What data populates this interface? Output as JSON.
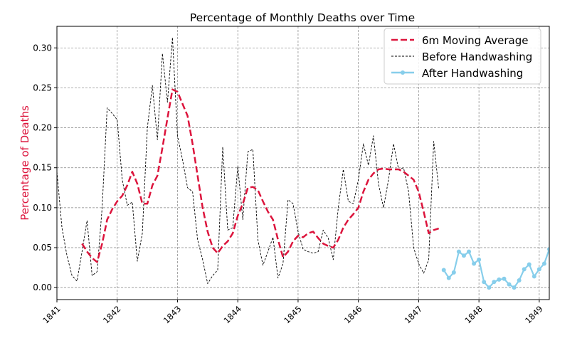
{
  "chart_data": {
    "type": "line",
    "title": "Percentage of Monthly Deaths over Time",
    "xlabel": "",
    "ylabel": "Percentage of Deaths",
    "ylabel_color": "#dc143c",
    "xlim": [
      "1841-01-01",
      "1849-03-01"
    ],
    "ylim": [
      -0.015,
      0.327
    ],
    "x_ticks": [
      {
        "date": "1841-01-01",
        "label": "1841"
      },
      {
        "date": "1842-01-01",
        "label": "1842"
      },
      {
        "date": "1843-01-01",
        "label": "1843"
      },
      {
        "date": "1844-01-01",
        "label": "1844"
      },
      {
        "date": "1845-01-01",
        "label": "1845"
      },
      {
        "date": "1846-01-01",
        "label": "1846"
      },
      {
        "date": "1847-01-01",
        "label": "1847"
      },
      {
        "date": "1848-01-01",
        "label": "1848"
      },
      {
        "date": "1849-01-01",
        "label": "1849"
      }
    ],
    "y_ticks": [
      "0.00",
      "0.05",
      "0.10",
      "0.15",
      "0.20",
      "0.25",
      "0.30"
    ],
    "grid": true,
    "legend_position": "top-right",
    "series": [
      {
        "name": "6m Moving Average",
        "color": "#dc143c",
        "style": "dashed",
        "x": [
          "1841-06-01",
          "1841-07-01",
          "1841-08-01",
          "1841-09-01",
          "1841-10-01",
          "1841-11-01",
          "1841-12-01",
          "1842-01-01",
          "1842-02-01",
          "1842-03-01",
          "1842-04-01",
          "1842-05-01",
          "1842-06-01",
          "1842-07-01",
          "1842-08-01",
          "1842-09-01",
          "1842-10-01",
          "1842-11-01",
          "1842-12-01",
          "1843-01-01",
          "1843-02-01",
          "1843-03-01",
          "1843-04-01",
          "1843-05-01",
          "1843-06-01",
          "1843-07-01",
          "1843-08-01",
          "1843-09-01",
          "1843-10-01",
          "1843-11-01",
          "1843-12-01",
          "1844-01-01",
          "1844-02-01",
          "1844-03-01",
          "1844-04-01",
          "1844-05-01",
          "1844-06-01",
          "1844-07-01",
          "1844-08-01",
          "1844-09-01",
          "1844-10-01",
          "1844-11-01",
          "1844-12-01",
          "1845-01-01",
          "1845-02-01",
          "1845-03-01",
          "1845-04-01",
          "1845-05-01",
          "1845-06-01",
          "1845-07-01",
          "1845-08-01",
          "1845-09-01",
          "1845-10-01",
          "1845-11-01",
          "1845-12-01",
          "1846-01-01",
          "1846-02-01",
          "1846-03-01",
          "1846-04-01",
          "1846-05-01",
          "1846-06-01",
          "1846-07-01",
          "1846-08-01",
          "1846-09-01",
          "1846-10-01",
          "1846-11-01",
          "1846-12-01",
          "1847-01-01",
          "1847-02-01",
          "1847-03-01",
          "1847-04-01",
          "1847-05-01"
        ],
        "values": [
          0.055,
          0.045,
          0.037,
          0.032,
          0.055,
          0.085,
          0.098,
          0.108,
          0.115,
          0.128,
          0.145,
          0.13,
          0.105,
          0.105,
          0.128,
          0.14,
          0.175,
          0.212,
          0.248,
          0.245,
          0.23,
          0.215,
          0.18,
          0.14,
          0.1,
          0.07,
          0.05,
          0.043,
          0.052,
          0.058,
          0.068,
          0.09,
          0.105,
          0.125,
          0.126,
          0.122,
          0.108,
          0.095,
          0.085,
          0.06,
          0.038,
          0.045,
          0.058,
          0.065,
          0.063,
          0.068,
          0.07,
          0.062,
          0.055,
          0.052,
          0.05,
          0.06,
          0.075,
          0.085,
          0.092,
          0.1,
          0.12,
          0.135,
          0.143,
          0.148,
          0.149,
          0.148,
          0.148,
          0.148,
          0.145,
          0.14,
          0.135,
          0.12,
          0.095,
          0.068,
          0.072,
          0.074
        ]
      },
      {
        "name": "Before Handwashing",
        "color": "#000000",
        "style": "dashed-thin",
        "x": [
          "1841-01-01",
          "1841-02-01",
          "1841-03-01",
          "1841-04-01",
          "1841-05-01",
          "1841-06-01",
          "1841-07-01",
          "1841-08-01",
          "1841-09-01",
          "1841-10-01",
          "1841-11-01",
          "1841-12-01",
          "1842-01-01",
          "1842-02-01",
          "1842-03-01",
          "1842-04-01",
          "1842-05-01",
          "1842-06-01",
          "1842-07-01",
          "1842-08-01",
          "1842-09-01",
          "1842-10-01",
          "1842-11-01",
          "1842-12-01",
          "1843-01-01",
          "1843-02-01",
          "1843-03-01",
          "1843-04-01",
          "1843-05-01",
          "1843-06-01",
          "1843-07-01",
          "1843-08-01",
          "1843-09-01",
          "1843-10-01",
          "1843-11-01",
          "1843-12-01",
          "1844-01-01",
          "1844-02-01",
          "1844-03-01",
          "1844-04-01",
          "1844-05-01",
          "1844-06-01",
          "1844-07-01",
          "1844-08-01",
          "1844-09-01",
          "1844-10-01",
          "1844-11-01",
          "1844-12-01",
          "1845-01-01",
          "1845-02-01",
          "1845-03-01",
          "1845-04-01",
          "1845-05-01",
          "1845-06-01",
          "1845-07-01",
          "1845-08-01",
          "1845-09-01",
          "1845-10-01",
          "1845-11-01",
          "1845-12-01",
          "1846-01-01",
          "1846-02-01",
          "1846-03-01",
          "1846-04-01",
          "1846-05-01",
          "1846-06-01",
          "1846-07-01",
          "1846-08-01",
          "1846-09-01",
          "1846-10-01",
          "1846-11-01",
          "1846-12-01",
          "1847-01-01",
          "1847-02-01",
          "1847-03-01",
          "1847-04-01",
          "1847-05-01"
        ],
        "values": [
          0.145,
          0.075,
          0.04,
          0.015,
          0.008,
          0.045,
          0.084,
          0.015,
          0.02,
          0.1,
          0.225,
          0.218,
          0.21,
          0.135,
          0.103,
          0.107,
          0.033,
          0.068,
          0.2,
          0.253,
          0.185,
          0.293,
          0.232,
          0.313,
          0.19,
          0.16,
          0.125,
          0.12,
          0.06,
          0.035,
          0.005,
          0.015,
          0.022,
          0.176,
          0.072,
          0.075,
          0.152,
          0.085,
          0.17,
          0.173,
          0.06,
          0.028,
          0.045,
          0.063,
          0.012,
          0.03,
          0.11,
          0.105,
          0.07,
          0.048,
          0.045,
          0.043,
          0.045,
          0.072,
          0.062,
          0.035,
          0.1,
          0.148,
          0.108,
          0.105,
          0.135,
          0.18,
          0.153,
          0.19,
          0.13,
          0.1,
          0.135,
          0.18,
          0.148,
          0.15,
          0.12,
          0.05,
          0.03,
          0.018,
          0.035,
          0.183,
          0.123
        ]
      },
      {
        "name": "After Handwashing",
        "color": "#87ceeb",
        "style": "solid-marker",
        "x": [
          "1847-06-01",
          "1847-07-01",
          "1847-08-01",
          "1847-09-01",
          "1847-10-01",
          "1847-11-01",
          "1847-12-01",
          "1848-01-01",
          "1848-02-01",
          "1848-03-01",
          "1848-04-01",
          "1848-05-01",
          "1848-06-01",
          "1848-07-01",
          "1848-08-01",
          "1848-09-01",
          "1848-10-01",
          "1848-11-01",
          "1848-12-01",
          "1849-01-01",
          "1849-02-01",
          "1849-03-01"
        ],
        "values": [
          0.022,
          0.012,
          0.019,
          0.045,
          0.04,
          0.045,
          0.03,
          0.035,
          0.007,
          0.0,
          0.007,
          0.01,
          0.011,
          0.004,
          0.0,
          0.009,
          0.023,
          0.029,
          0.014,
          0.023,
          0.03,
          0.048
        ]
      }
    ]
  }
}
